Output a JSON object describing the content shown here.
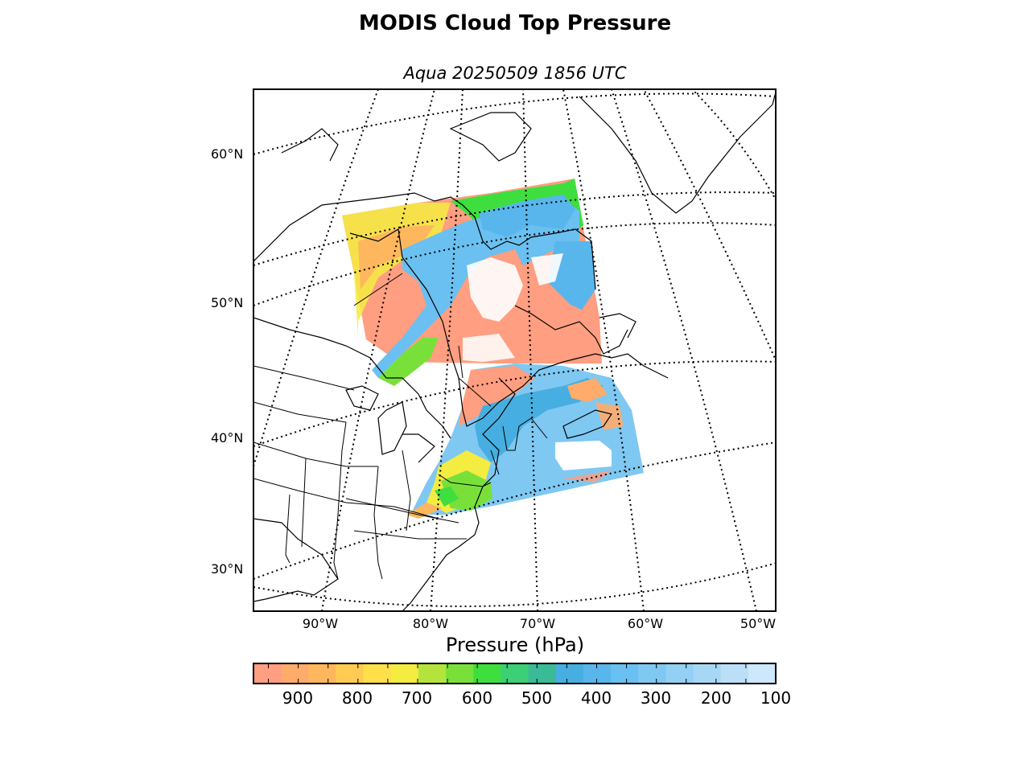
{
  "title": "MODIS Cloud Top Pressure",
  "subtitle": "Aqua 20250509 1856 UTC",
  "map": {
    "projection": "lambert-conformal",
    "latitude_labels": [
      "60°N",
      "50°N",
      "40°N",
      "30°N"
    ],
    "longitude_labels": [
      "90°W",
      "80°W",
      "70°W",
      "60°W",
      "50°W"
    ],
    "graticule_style": "dotted",
    "coastline_color": "#000000",
    "satellite_swath": "northeast North America",
    "dominant_regions": [
      {
        "area": "Ontario / Quebec west",
        "pressure_hPa": "700-900"
      },
      {
        "area": "Quebec / Labrador central band",
        "pressure_hPa": "300-500"
      },
      {
        "area": "Gulf of St. Lawrence / Newfoundland",
        "pressure_hPa": "850-950"
      },
      {
        "area": "New England / Nova Scotia offshore",
        "pressure_hPa": "250-350"
      }
    ]
  },
  "colorbar": {
    "label": "Pressure (hPa)",
    "tick_labels": [
      "900",
      "800",
      "700",
      "600",
      "500",
      "400",
      "300",
      "200",
      "100"
    ],
    "range": [
      975,
      100
    ],
    "colors": [
      "#ff9e80",
      "#ffab6b",
      "#ffb75e",
      "#ffcb52",
      "#ffe04a",
      "#f4ec41",
      "#b4e43c",
      "#79e03a",
      "#3ede3e",
      "#3ccf75",
      "#3aba96",
      "#46aee0",
      "#58b6ec",
      "#6ac0f0",
      "#7ec8f2",
      "#92d0f4",
      "#a6d8f6",
      "#bcdff8",
      "#cde8fb"
    ]
  },
  "chart_data": {
    "type": "heatmap",
    "title": "MODIS Cloud Top Pressure",
    "subtitle": "Aqua 20250509 1856 UTC",
    "colorbar_label": "Pressure (hPa)",
    "colorbar_ticks": [
      900,
      800,
      700,
      600,
      500,
      400,
      300,
      200,
      100
    ],
    "colorbar_range": [
      975,
      100
    ]
  }
}
